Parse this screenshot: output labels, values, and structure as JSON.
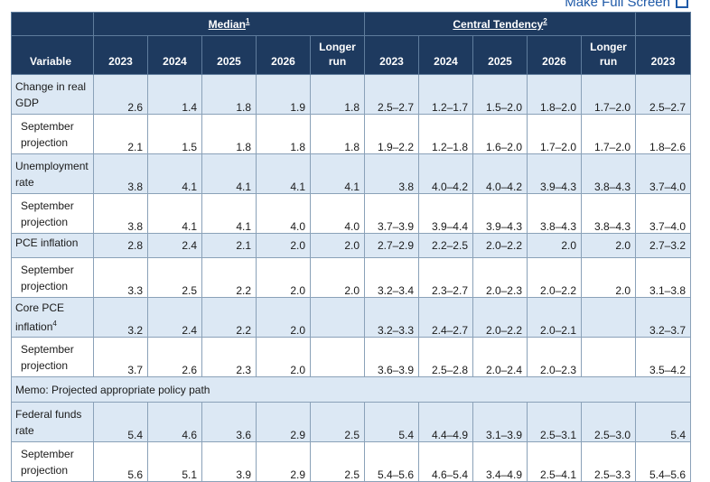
{
  "fullscreen_label": "Make Full Screen",
  "header": {
    "median_label": "Median",
    "median_note": "1",
    "central_label": "Central Tendency",
    "central_note": "2",
    "variable": "Variable",
    "median_cols": [
      "2023",
      "2024",
      "2025",
      "2026",
      "Longer run"
    ],
    "central_cols": [
      "2023",
      "2024",
      "2025",
      "2026",
      "Longer run"
    ],
    "extra_col": "2023"
  },
  "rows": [
    {
      "label": "Change in real GDP",
      "note": "",
      "type": "main",
      "median": [
        "2.6",
        "1.4",
        "1.8",
        "1.9",
        "1.8"
      ],
      "central": [
        "2.5–2.7",
        "1.2–1.7",
        "1.5–2.0",
        "1.8–2.0",
        "1.7–2.0"
      ],
      "extra": "2.5–2.7"
    },
    {
      "label": "September projection",
      "note": "",
      "type": "proj",
      "median": [
        "2.1",
        "1.5",
        "1.8",
        "1.8",
        "1.8"
      ],
      "central": [
        "1.9–2.2",
        "1.2–1.8",
        "1.6–2.0",
        "1.7–2.0",
        "1.7–2.0"
      ],
      "extra": "1.8–2.6"
    },
    {
      "label": "Unemployment rate",
      "note": "",
      "type": "main",
      "median": [
        "3.8",
        "4.1",
        "4.1",
        "4.1",
        "4.1"
      ],
      "central": [
        "3.8",
        "4.0–4.2",
        "4.0–4.2",
        "3.9–4.3",
        "3.8–4.3"
      ],
      "extra": "3.7–4.0"
    },
    {
      "label": "September projection",
      "note": "",
      "type": "proj",
      "median": [
        "3.8",
        "4.1",
        "4.1",
        "4.0",
        "4.0"
      ],
      "central": [
        "3.7–3.9",
        "3.9–4.4",
        "3.9–4.3",
        "3.8–4.3",
        "3.8–4.3"
      ],
      "extra": "3.7–4.0"
    },
    {
      "label": "PCE inflation",
      "note": "",
      "type": "main-short",
      "median": [
        "2.8",
        "2.4",
        "2.1",
        "2.0",
        "2.0"
      ],
      "central": [
        "2.7–2.9",
        "2.2–2.5",
        "2.0–2.2",
        "2.0",
        "2.0"
      ],
      "extra": "2.7–3.2"
    },
    {
      "label": "September projection",
      "note": "",
      "type": "proj",
      "median": [
        "3.3",
        "2.5",
        "2.2",
        "2.0",
        "2.0"
      ],
      "central": [
        "3.2–3.4",
        "2.3–2.7",
        "2.0–2.3",
        "2.0–2.2",
        "2.0"
      ],
      "extra": "3.1–3.8"
    },
    {
      "label": "Core PCE inflation",
      "note": "4",
      "type": "main",
      "median": [
        "3.2",
        "2.4",
        "2.2",
        "2.0",
        ""
      ],
      "central": [
        "3.2–3.3",
        "2.4–2.7",
        "2.0–2.2",
        "2.0–2.1",
        ""
      ],
      "extra": "3.2–3.7"
    },
    {
      "label": "September projection",
      "note": "",
      "type": "proj",
      "median": [
        "3.7",
        "2.6",
        "2.3",
        "2.0",
        ""
      ],
      "central": [
        "3.6–3.9",
        "2.5–2.8",
        "2.0–2.4",
        "2.0–2.3",
        ""
      ],
      "extra": "3.5–4.2"
    },
    {
      "label": "Memo: Projected appropriate policy path",
      "note": "",
      "type": "memo",
      "median": [],
      "central": [],
      "extra": ""
    },
    {
      "label": "Federal funds rate",
      "note": "",
      "type": "main",
      "median": [
        "5.4",
        "4.6",
        "3.6",
        "2.9",
        "2.5"
      ],
      "central": [
        "5.4",
        "4.4–4.9",
        "3.1–3.9",
        "2.5–3.1",
        "2.5–3.0"
      ],
      "extra": "5.4"
    },
    {
      "label": "September projection",
      "note": "",
      "type": "proj",
      "median": [
        "5.6",
        "5.1",
        "3.9",
        "2.9",
        "2.5"
      ],
      "central": [
        "5.4–5.6",
        "4.6–5.4",
        "3.4–4.9",
        "2.5–4.1",
        "2.5–3.3"
      ],
      "extra": "5.4–5.6"
    }
  ]
}
